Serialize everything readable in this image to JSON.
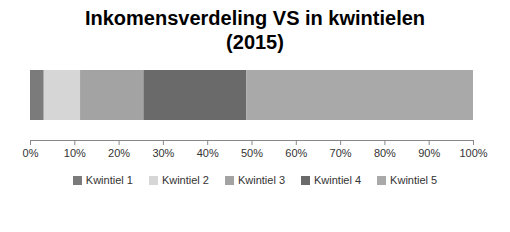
{
  "chart_data": {
    "type": "bar",
    "title": "Inkomensverdeling VS in kwintielen (2015)",
    "orientation": "horizontal",
    "stacked": true,
    "categories": [
      null
    ],
    "series": [
      {
        "name": "Kwintiel 1",
        "color": "#7b7b7b",
        "values": [
          3.1
        ]
      },
      {
        "name": "Kwintiel 2",
        "color": "#d6d6d6",
        "values": [
          8.2
        ]
      },
      {
        "name": "Kwintiel 3",
        "color": "#a3a3a3",
        "values": [
          14.3
        ]
      },
      {
        "name": "Kwintiel 4",
        "color": "#6a6a6a",
        "values": [
          23.2
        ]
      },
      {
        "name": "Kwintiel 5",
        "color": "#a9a9a9",
        "values": [
          51.2
        ]
      }
    ],
    "xlim": [
      0,
      100
    ],
    "xticks": [
      {
        "value": 0,
        "label": "0%"
      },
      {
        "value": 10,
        "label": "10%"
      },
      {
        "value": 20,
        "label": "20%"
      },
      {
        "value": 30,
        "label": "30%"
      },
      {
        "value": 40,
        "label": "40%"
      },
      {
        "value": 50,
        "label": "50%"
      },
      {
        "value": 60,
        "label": "60%"
      },
      {
        "value": 70,
        "label": "70%"
      },
      {
        "value": 80,
        "label": "80%"
      },
      {
        "value": 90,
        "label": "90%"
      },
      {
        "value": 100,
        "label": "100%"
      }
    ],
    "grid": false,
    "legend": "bottom",
    "data_labels": false,
    "tick_labels": "x"
  }
}
